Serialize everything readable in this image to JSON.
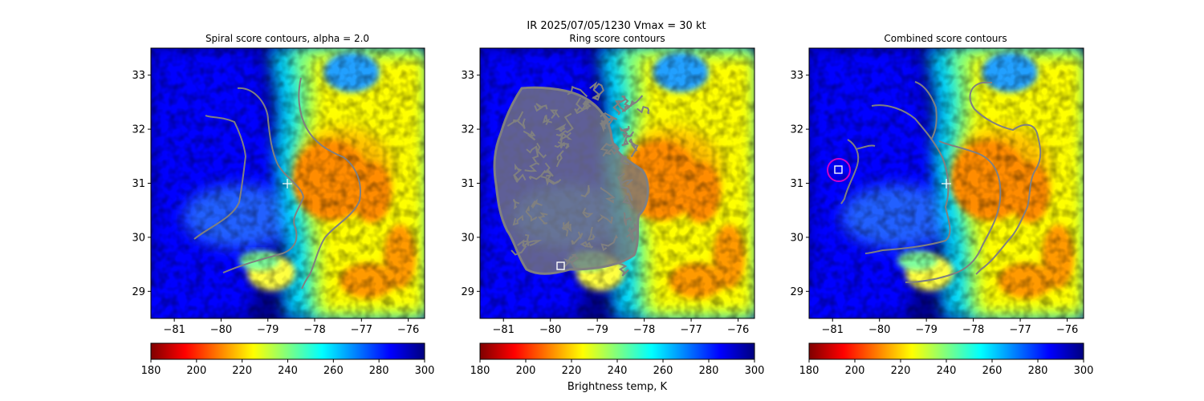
{
  "suptitle": "IR  2025/07/05/1230    Vmax = 30 kt",
  "colorbar_label": "Brightness temp, K",
  "colormap": [
    "#7f0000",
    "#ff0000",
    "#ff7f00",
    "#ffff00",
    "#7fff7f",
    "#00ffff",
    "#007fff",
    "#0000ff",
    "#00007f"
  ],
  "contour_color": "#808080",
  "chart_data": [
    {
      "type": "heatmap",
      "title": "Spiral score contours, alpha =  2.0",
      "xlim": [
        -81.5,
        -75.65
      ],
      "ylim": [
        28.5,
        33.5
      ],
      "xticks": [
        -81,
        -80,
        -79,
        -78,
        -77,
        -76
      ],
      "xtick_labels": [
        "−81",
        "−80",
        "−79",
        "−78",
        "−77",
        "−76"
      ],
      "yticks": [
        29,
        30,
        31,
        32,
        33
      ],
      "ytick_labels": [
        "29",
        "30",
        "31",
        "32",
        "33"
      ],
      "color_range": [
        180,
        300
      ],
      "colorbar_ticks": [
        "180",
        "200",
        "220",
        "240",
        "260",
        "280",
        "300"
      ],
      "center_marker": {
        "lon": -78.5,
        "lat": 30.98,
        "symbol": "+"
      }
    },
    {
      "type": "heatmap",
      "title": "Ring score contours",
      "xlim": [
        -81.5,
        -75.65
      ],
      "ylim": [
        28.5,
        33.5
      ],
      "xticks": [
        -81,
        -80,
        -79,
        -78,
        -77,
        -76
      ],
      "xtick_labels": [
        "−81",
        "−80",
        "−79",
        "−78",
        "−77",
        "−76"
      ],
      "yticks": [
        29,
        30,
        31,
        32,
        33
      ],
      "ytick_labels": [
        "29",
        "30",
        "31",
        "32",
        "33"
      ],
      "color_range": [
        180,
        300
      ],
      "colorbar_ticks": [
        "180",
        "200",
        "220",
        "240",
        "260",
        "280",
        "300"
      ],
      "square_marker": {
        "lon": -79.75,
        "lat": 29.45,
        "symbol": "square"
      }
    },
    {
      "type": "heatmap",
      "title": "Combined score contours",
      "xlim": [
        -81.5,
        -75.65
      ],
      "ylim": [
        28.5,
        33.5
      ],
      "xticks": [
        -81,
        -80,
        -79,
        -78,
        -77,
        -76
      ],
      "xtick_labels": [
        "−81",
        "−80",
        "−79",
        "−78",
        "−77",
        "−76"
      ],
      "yticks": [
        29,
        30,
        31,
        32,
        33
      ],
      "ytick_labels": [
        "29",
        "30",
        "31",
        "32",
        "33"
      ],
      "color_range": [
        180,
        300
      ],
      "colorbar_ticks": [
        "180",
        "200",
        "220",
        "240",
        "260",
        "280",
        "300"
      ],
      "center_marker": {
        "lon": -78.55,
        "lat": 30.98,
        "symbol": "+"
      },
      "square_marker": {
        "lon": -80.88,
        "lat": 31.23,
        "symbol": "square"
      },
      "circle_marker": {
        "lon": -80.88,
        "lat": 31.23,
        "color": "#cc00cc"
      }
    }
  ]
}
